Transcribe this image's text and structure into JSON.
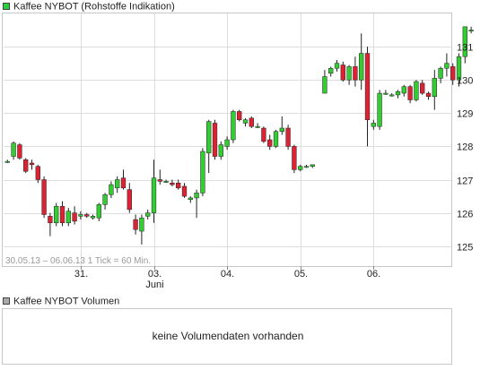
{
  "price_panel": {
    "legend": "Kaffee NYBOT (Rohstoffe Indikation)",
    "legend_color": "#2ecc40",
    "info": "30.05.13 – 06.06.13   1 Tick = 60 Min."
  },
  "volume_panel": {
    "legend": "Kaffee NYBOT Volumen",
    "legend_color": "#aaaaaa",
    "message": "keine Volumendaten vorhanden"
  },
  "colors": {
    "up": "#33cc33",
    "down": "#dd2233",
    "wick": "#222222",
    "grid": "#dddddd"
  },
  "chart_data": {
    "type": "candlestick",
    "series_name": "Kaffee NYBOT (Rohstoffe Indikation)",
    "interval": "1 Tick = 60 Min.",
    "ylim": [
      124.4,
      132.0
    ],
    "yticks": [
      125,
      126,
      127,
      128,
      129,
      130,
      131
    ],
    "xlim": [
      0,
      96
    ],
    "xticks": [
      {
        "label": "31.",
        "sublabel": "",
        "x": 12
      },
      {
        "label": "03.",
        "sublabel": "Juni",
        "x": 24
      },
      {
        "label": "04.",
        "sublabel": "",
        "x": 36
      },
      {
        "label": "05.",
        "sublabel": "",
        "x": 48
      },
      {
        "label": "06.",
        "sublabel": "",
        "x": 60
      }
    ],
    "candles": [
      {
        "x": 0,
        "o": 127.55,
        "h": 127.6,
        "l": 127.5,
        "c": 127.55
      },
      {
        "x": 1,
        "o": 127.7,
        "h": 128.15,
        "l": 127.6,
        "c": 128.1
      },
      {
        "x": 2,
        "o": 128.05,
        "h": 128.1,
        "l": 127.6,
        "c": 127.65
      },
      {
        "x": 3,
        "o": 127.6,
        "h": 127.65,
        "l": 127.2,
        "c": 127.25
      },
      {
        "x": 4,
        "o": 127.5,
        "h": 127.6,
        "l": 127.3,
        "c": 127.45
      },
      {
        "x": 5,
        "o": 127.4,
        "h": 127.45,
        "l": 126.9,
        "c": 127.0
      },
      {
        "x": 6,
        "o": 127.0,
        "h": 127.1,
        "l": 125.85,
        "c": 125.95
      },
      {
        "x": 7,
        "o": 125.9,
        "h": 126.0,
        "l": 125.3,
        "c": 125.7
      },
      {
        "x": 8,
        "o": 125.7,
        "h": 126.3,
        "l": 125.6,
        "c": 126.2
      },
      {
        "x": 9,
        "o": 126.2,
        "h": 126.35,
        "l": 125.6,
        "c": 125.7
      },
      {
        "x": 10,
        "o": 125.7,
        "h": 126.15,
        "l": 125.6,
        "c": 126.05
      },
      {
        "x": 11,
        "o": 126.0,
        "h": 126.2,
        "l": 125.65,
        "c": 125.75
      },
      {
        "x": 12,
        "o": 125.9,
        "h": 126.05,
        "l": 125.8,
        "c": 125.95
      },
      {
        "x": 13,
        "o": 125.95,
        "h": 126.0,
        "l": 125.85,
        "c": 125.9
      },
      {
        "x": 14,
        "o": 125.85,
        "h": 125.95,
        "l": 125.8,
        "c": 125.9
      },
      {
        "x": 15,
        "o": 125.85,
        "h": 126.3,
        "l": 125.75,
        "c": 126.25
      },
      {
        "x": 16,
        "o": 126.25,
        "h": 126.6,
        "l": 126.1,
        "c": 126.55
      },
      {
        "x": 17,
        "o": 126.55,
        "h": 126.95,
        "l": 126.45,
        "c": 126.85
      },
      {
        "x": 18,
        "o": 126.75,
        "h": 127.1,
        "l": 126.6,
        "c": 127.0
      },
      {
        "x": 19,
        "o": 127.05,
        "h": 127.3,
        "l": 126.7,
        "c": 126.75
      },
      {
        "x": 20,
        "o": 126.7,
        "h": 126.9,
        "l": 126.0,
        "c": 126.1
      },
      {
        "x": 21,
        "o": 125.8,
        "h": 125.95,
        "l": 125.35,
        "c": 125.5
      },
      {
        "x": 22,
        "o": 125.45,
        "h": 125.95,
        "l": 125.05,
        "c": 125.85
      },
      {
        "x": 23,
        "o": 125.9,
        "h": 126.1,
        "l": 125.8,
        "c": 126.0
      },
      {
        "x": 24,
        "o": 126.0,
        "h": 127.6,
        "l": 125.7,
        "c": 127.05
      },
      {
        "x": 25,
        "o": 127.0,
        "h": 127.3,
        "l": 126.85,
        "c": 126.95
      },
      {
        "x": 26,
        "o": 126.95,
        "h": 127.0,
        "l": 126.9,
        "c": 126.95
      },
      {
        "x": 27,
        "o": 126.9,
        "h": 127.0,
        "l": 126.8,
        "c": 126.85
      },
      {
        "x": 28,
        "o": 126.9,
        "h": 127.0,
        "l": 126.7,
        "c": 126.75
      },
      {
        "x": 29,
        "o": 126.8,
        "h": 126.9,
        "l": 126.45,
        "c": 126.5
      },
      {
        "x": 30,
        "o": 126.4,
        "h": 126.5,
        "l": 126.3,
        "c": 126.45
      },
      {
        "x": 31,
        "o": 126.45,
        "h": 126.7,
        "l": 125.85,
        "c": 126.6
      },
      {
        "x": 32,
        "o": 126.6,
        "h": 127.95,
        "l": 126.5,
        "c": 127.85
      },
      {
        "x": 33,
        "o": 127.8,
        "h": 128.8,
        "l": 127.2,
        "c": 128.75
      },
      {
        "x": 34,
        "o": 128.7,
        "h": 128.8,
        "l": 127.6,
        "c": 127.7
      },
      {
        "x": 35,
        "o": 127.7,
        "h": 128.15,
        "l": 127.6,
        "c": 128.05
      },
      {
        "x": 36,
        "o": 128.0,
        "h": 128.3,
        "l": 127.9,
        "c": 128.2
      },
      {
        "x": 37,
        "o": 128.2,
        "h": 129.1,
        "l": 128.1,
        "c": 129.05
      },
      {
        "x": 38,
        "o": 129.05,
        "h": 129.1,
        "l": 128.75,
        "c": 128.8
      },
      {
        "x": 39,
        "o": 128.7,
        "h": 128.85,
        "l": 128.6,
        "c": 128.8
      },
      {
        "x": 40,
        "o": 128.85,
        "h": 128.9,
        "l": 128.55,
        "c": 128.6
      },
      {
        "x": 41,
        "o": 128.6,
        "h": 128.7,
        "l": 128.55,
        "c": 128.6
      },
      {
        "x": 42,
        "o": 128.55,
        "h": 128.6,
        "l": 128.1,
        "c": 128.15
      },
      {
        "x": 43,
        "o": 128.2,
        "h": 128.35,
        "l": 127.9,
        "c": 128.0
      },
      {
        "x": 44,
        "o": 128.0,
        "h": 128.5,
        "l": 127.95,
        "c": 128.45
      },
      {
        "x": 45,
        "o": 128.45,
        "h": 128.9,
        "l": 128.35,
        "c": 128.55
      },
      {
        "x": 46,
        "o": 128.55,
        "h": 128.65,
        "l": 127.9,
        "c": 128.0
      },
      {
        "x": 47,
        "o": 128.0,
        "h": 128.05,
        "l": 127.2,
        "c": 127.3
      },
      {
        "x": 48,
        "o": 127.3,
        "h": 127.45,
        "l": 127.25,
        "c": 127.4
      },
      {
        "x": 49,
        "o": 127.4,
        "h": 127.45,
        "l": 127.35,
        "c": 127.4
      },
      {
        "x": 50,
        "o": 127.4,
        "h": 127.45,
        "l": 127.35,
        "c": 127.45
      },
      {
        "x": 52,
        "o": 129.6,
        "h": 130.3,
        "l": 129.6,
        "c": 130.1
      },
      {
        "x": 53,
        "o": 130.2,
        "h": 130.4,
        "l": 130.1,
        "c": 130.35
      },
      {
        "x": 54,
        "o": 130.35,
        "h": 130.6,
        "l": 130.25,
        "c": 130.5
      },
      {
        "x": 55,
        "o": 130.45,
        "h": 130.55,
        "l": 129.95,
        "c": 130.0
      },
      {
        "x": 56,
        "o": 130.0,
        "h": 130.45,
        "l": 129.85,
        "c": 130.4
      },
      {
        "x": 57,
        "o": 130.4,
        "h": 130.7,
        "l": 129.8,
        "c": 130.0
      },
      {
        "x": 58,
        "o": 130.0,
        "h": 131.4,
        "l": 129.7,
        "c": 130.8
      },
      {
        "x": 59,
        "o": 130.8,
        "h": 131.0,
        "l": 128.0,
        "c": 128.8
      },
      {
        "x": 60,
        "o": 128.6,
        "h": 128.8,
        "l": 128.5,
        "c": 128.7
      },
      {
        "x": 61,
        "o": 128.6,
        "h": 129.7,
        "l": 128.5,
        "c": 129.6
      },
      {
        "x": 62,
        "o": 129.6,
        "h": 129.7,
        "l": 129.55,
        "c": 129.6
      },
      {
        "x": 63,
        "o": 129.55,
        "h": 129.6,
        "l": 129.5,
        "c": 129.55
      },
      {
        "x": 64,
        "o": 129.55,
        "h": 129.7,
        "l": 129.45,
        "c": 129.65
      },
      {
        "x": 65,
        "o": 129.6,
        "h": 129.85,
        "l": 129.5,
        "c": 129.8
      },
      {
        "x": 66,
        "o": 129.8,
        "h": 129.85,
        "l": 129.3,
        "c": 129.4
      },
      {
        "x": 67,
        "o": 129.4,
        "h": 130.0,
        "l": 129.35,
        "c": 129.95
      },
      {
        "x": 68,
        "o": 129.9,
        "h": 130.0,
        "l": 129.55,
        "c": 129.6
      },
      {
        "x": 69,
        "o": 129.6,
        "h": 129.65,
        "l": 129.4,
        "c": 129.5
      },
      {
        "x": 70,
        "o": 129.5,
        "h": 130.3,
        "l": 129.1,
        "c": 130.05
      },
      {
        "x": 71,
        "o": 130.05,
        "h": 130.4,
        "l": 129.9,
        "c": 130.35
      },
      {
        "x": 72,
        "o": 130.35,
        "h": 130.8,
        "l": 130.1,
        "c": 130.5
      },
      {
        "x": 73,
        "o": 130.4,
        "h": 130.5,
        "l": 129.85,
        "c": 130.0
      },
      {
        "x": 74,
        "o": 130.0,
        "h": 130.8,
        "l": 129.8,
        "c": 130.7
      },
      {
        "x": 75,
        "o": 130.7,
        "h": 131.6,
        "l": 130.5,
        "c": 131.6
      },
      {
        "x": 76,
        "o": 131.5,
        "h": 131.6,
        "l": 131.4,
        "c": 131.5
      }
    ]
  }
}
